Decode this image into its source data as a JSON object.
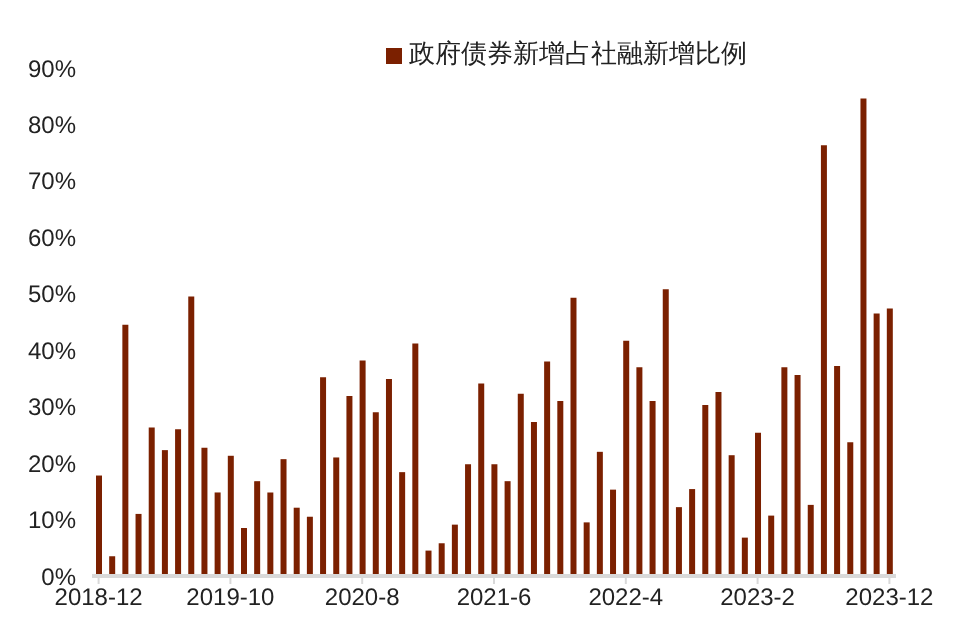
{
  "chart_data": {
    "type": "bar",
    "categories": [
      "2018-12",
      null,
      null,
      null,
      null,
      null,
      null,
      null,
      null,
      null,
      "2019-10",
      null,
      null,
      null,
      null,
      null,
      null,
      null,
      null,
      null,
      "2020-8",
      null,
      null,
      null,
      null,
      null,
      null,
      null,
      null,
      null,
      "2021-6",
      null,
      null,
      null,
      null,
      null,
      null,
      null,
      null,
      null,
      "2022-4",
      null,
      null,
      null,
      null,
      null,
      null,
      null,
      null,
      null,
      "2023-2",
      null,
      null,
      null,
      null,
      null,
      null,
      null,
      null,
      null,
      "2023-12"
    ],
    "series": [
      {
        "name": "政府债券新增占社融新增比例",
        "color": "#7b2000",
        "values": [
          17.8,
          3.5,
          44.5,
          11,
          26.3,
          22.3,
          26,
          49.5,
          22.7,
          14.8,
          21.3,
          8.5,
          16.8,
          14.8,
          20.7,
          12.1,
          10.5,
          35.2,
          21,
          31.9,
          38.2,
          29,
          34.9,
          18.4,
          41.2,
          4.5,
          5.8,
          9.1,
          19.8,
          34.1,
          19.8,
          16.8,
          32.3,
          27.3,
          38,
          31,
          49.3,
          9.5,
          22,
          15.3,
          41.7,
          37,
          31,
          50.8,
          12.2,
          15.4,
          30.3,
          32.6,
          21.4,
          6.8,
          25.4,
          10.7,
          37,
          35.6,
          12.6,
          76.3,
          37.2,
          23.7,
          84.6,
          46.5,
          47.4
        ]
      }
    ],
    "ylim": [
      0,
      90
    ],
    "yticks": [
      {
        "value": 0,
        "label": "0%"
      },
      {
        "value": 10,
        "label": "10%"
      },
      {
        "value": 20,
        "label": "20%"
      },
      {
        "value": 30,
        "label": "30%"
      },
      {
        "value": 40,
        "label": "40%"
      },
      {
        "value": 50,
        "label": "50%"
      },
      {
        "value": 60,
        "label": "60%"
      },
      {
        "value": 70,
        "label": "70%"
      },
      {
        "value": 80,
        "label": "80%"
      },
      {
        "value": 90,
        "label": "90%"
      }
    ],
    "legend": "top",
    "grid": false
  }
}
